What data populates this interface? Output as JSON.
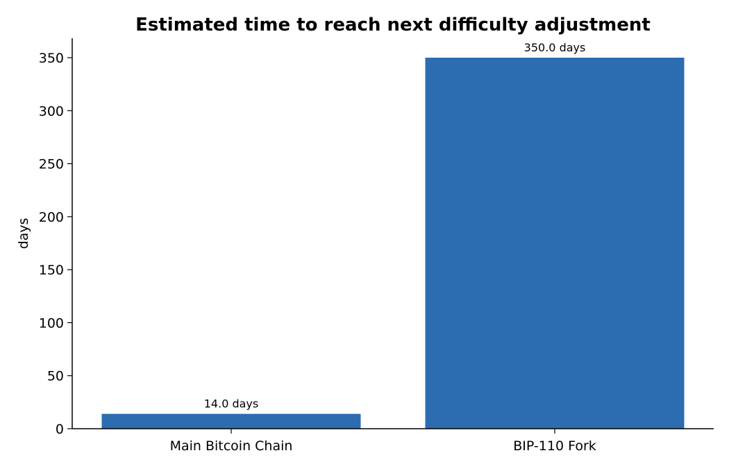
{
  "chart_data": {
    "type": "bar",
    "title": "Estimated time to reach next difficulty adjustment",
    "xlabel": "",
    "ylabel": "days",
    "categories": [
      "Main Bitcoin Chain",
      "BIP-110 Fork"
    ],
    "values": [
      14.0,
      350.0
    ],
    "data_labels": [
      "14.0 days",
      "350.0 days"
    ],
    "ylim": [
      0,
      370
    ],
    "yticks": [
      0,
      50,
      100,
      150,
      200,
      250,
      300,
      350
    ],
    "grid": false,
    "legend": "none",
    "bar_color": "#2c6cb0",
    "spines": "left-bottom"
  }
}
